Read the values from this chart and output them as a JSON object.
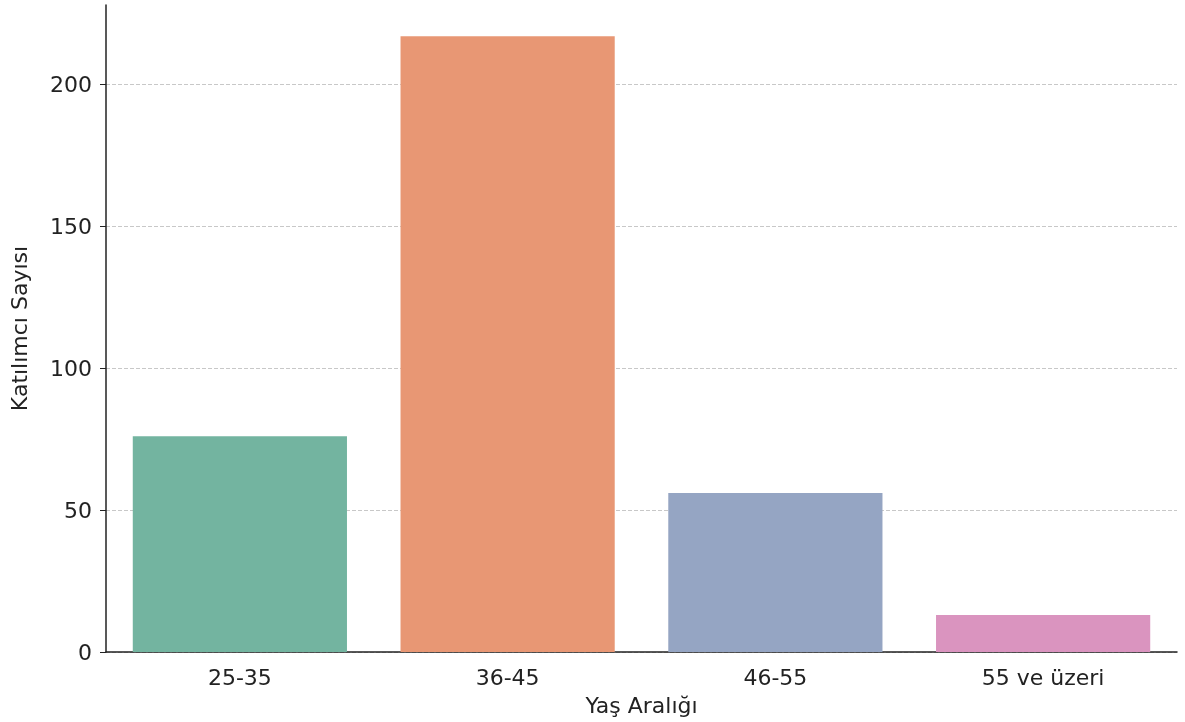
{
  "chart_data": {
    "type": "bar",
    "xlabel": "Yaş Aralığı",
    "ylabel": "Katılımcı Sayısı",
    "categories": [
      "25-35",
      "36-45",
      "46-55",
      "55 ve üzeri"
    ],
    "values": [
      76,
      217,
      56,
      13
    ],
    "colors": [
      "#73b4a0",
      "#e89774",
      "#95a5c3",
      "#da94bf"
    ],
    "ylim": [
      0,
      228
    ],
    "yticks": [
      0,
      50,
      100,
      150,
      200
    ],
    "grid": "y"
  }
}
